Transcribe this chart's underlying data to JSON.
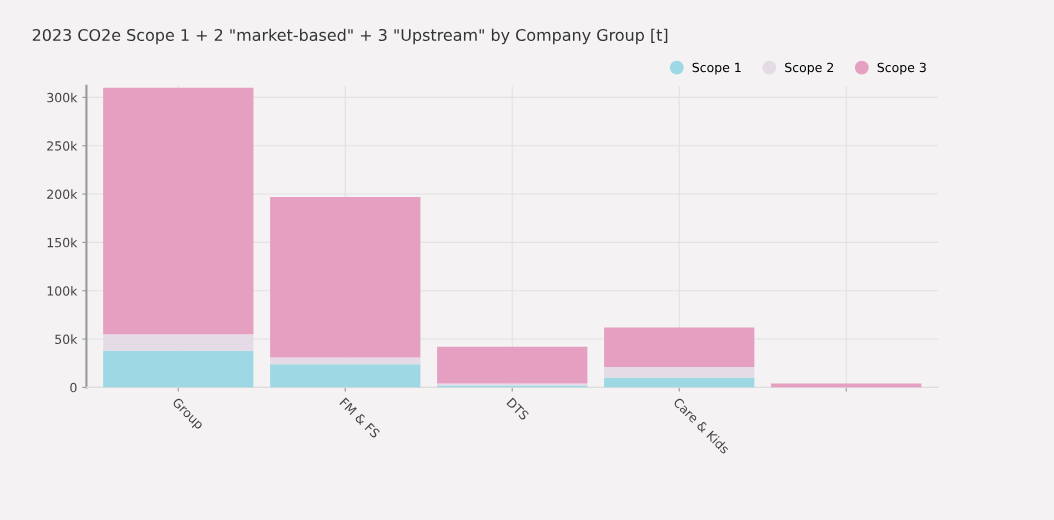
{
  "chart_data": {
    "type": "bar",
    "title": "2023 CO2e Scope 1 + 2 \"market-based\" + 3 \"Upstream\" by Company Group [t]",
    "categories": [
      "Group",
      "FM & FS",
      "DTS",
      "Care & Kids",
      null
    ],
    "stacked": true,
    "series": [
      {
        "name": "Scope 1",
        "color": "#9dd8e4",
        "values": [
          38000,
          24000,
          2000,
          10000,
          null
        ]
      },
      {
        "name": "Scope 2",
        "color": "#e5dbe6",
        "values": [
          17000,
          7000,
          2000,
          11000,
          null
        ]
      },
      {
        "name": "Scope 3",
        "color": "#e5a0c1",
        "values": [
          255000,
          166000,
          38000,
          41000,
          4000
        ]
      }
    ],
    "ylim": [
      0,
      312000
    ],
    "yticks": [
      0,
      {
        "value": 50000,
        "label": "50k"
      },
      {
        "value": 100000,
        "label": "100k"
      },
      {
        "value": 150000,
        "label": "150k"
      },
      {
        "value": 200000,
        "label": "200k"
      },
      {
        "value": 250000,
        "label": "250k"
      },
      {
        "value": 300000,
        "label": "300k"
      }
    ],
    "grid": true,
    "legend": "top right",
    "marker": "circle"
  }
}
